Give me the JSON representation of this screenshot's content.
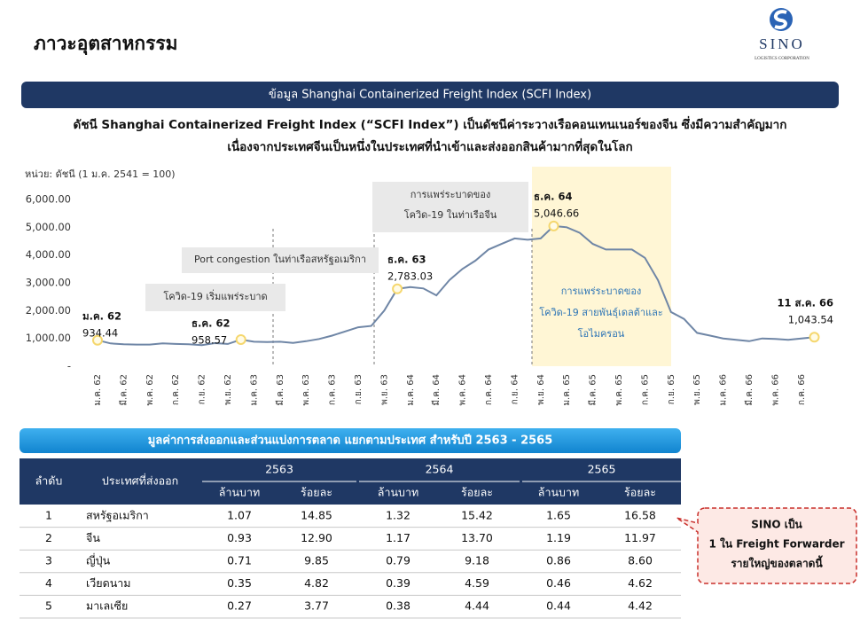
{
  "header": {
    "title": "ภาวะอุตสาหกรรม",
    "logo": "SINO",
    "logo_sub": "LOGISTICS CORPORATION"
  },
  "banner": "ข้อมูล Shanghai Containerized Freight Index (SCFI Index)",
  "description": [
    "ดัชนี Shanghai Containerized Freight Index (“SCFI Index”) เป็นดัชนีค่าระวางเรือคอนเทนเนอร์ของจีน ซึ่งมีความสำคัญมาก",
    "เนื่องจากประเทศจีนเป็นหนึ่งในประเทศที่นำเข้าและส่งออกสินค้ามากที่สุดในโลก"
  ],
  "chart_data": {
    "type": "line",
    "unit_label": "หน่วย: ดัชนี (1 ม.ค. 2541 = 100)",
    "color": "#6f86a6",
    "marker_color": "#f5d76e",
    "categories": [
      "ม.ค. 62",
      null,
      "มี.ค. 62",
      null,
      "พ.ค. 62",
      null,
      "ก.ค. 62",
      null,
      "ก.ย. 62",
      null,
      "พ.ย. 62",
      null,
      "ม.ค. 63",
      null,
      "มี.ค. 63",
      null,
      "พ.ค. 63",
      null,
      "ก.ค. 63",
      null,
      "ก.ย. 63",
      null,
      "พ.ย. 63",
      null,
      "ม.ค. 64",
      null,
      "มี.ค. 64",
      null,
      "พ.ค. 64",
      null,
      "ก.ค. 64",
      null,
      "ก.ย. 64",
      null,
      "พ.ย. 64",
      null,
      "ม.ค. 65",
      null,
      "มี.ค. 65",
      null,
      "พ.ค. 65",
      null,
      "ก.ค. 65",
      null,
      "ก.ย. 65",
      null,
      "พ.ย. 65",
      null,
      "ม.ค. 66",
      null,
      "มี.ค. 66",
      null,
      "พ.ค. 66",
      null,
      "ก.ค. 66",
      null
    ],
    "values": [
      934.44,
      820,
      790,
      780,
      780,
      820,
      800,
      790,
      760,
      830,
      800,
      958.57,
      880,
      870,
      880,
      840,
      900,
      980,
      1100,
      1250,
      1400,
      1450,
      2000,
      2783.03,
      2850,
      2800,
      2550,
      3100,
      3500,
      3800,
      4200,
      4400,
      4600,
      4550,
      4600,
      5046.66,
      5000,
      4800,
      4400,
      4200,
      4200,
      4200,
      3900,
      3100,
      1950,
      1700,
      1200,
      1100,
      1000,
      950,
      900,
      1000,
      980,
      950,
      1000,
      1043.54
    ],
    "value_labels": [
      "934.44",
      null,
      null,
      null,
      null,
      null,
      null,
      null,
      null,
      null,
      null,
      "958.57",
      null,
      null,
      null,
      null,
      null,
      null,
      null,
      null,
      null,
      null,
      null,
      "2,783.03",
      null,
      null,
      null,
      null,
      null,
      null,
      null,
      null,
      null,
      null,
      null,
      "5,046.66",
      null,
      null,
      null,
      null,
      null,
      null,
      null,
      null,
      null,
      null,
      null,
      null,
      null,
      null,
      null,
      null,
      null,
      null,
      null,
      "1,043.54"
    ],
    "point_dates": [
      "ม.ค. 62",
      null,
      null,
      null,
      null,
      null,
      null,
      null,
      null,
      null,
      null,
      "ธ.ค. 62",
      null,
      null,
      null,
      null,
      null,
      null,
      null,
      null,
      null,
      null,
      null,
      "ธ.ค. 63",
      null,
      null,
      null,
      null,
      null,
      null,
      null,
      null,
      null,
      null,
      null,
      "ธ.ค. 64",
      null,
      null,
      null,
      null,
      null,
      null,
      null,
      null,
      null,
      null,
      null,
      null,
      null,
      null,
      null,
      null,
      null,
      null,
      null,
      "11 ส.ค. 66"
    ],
    "ylim": [
      0,
      6000
    ],
    "yticks": [
      {
        "value": 0,
        "label": "-"
      },
      {
        "value": 1000,
        "label": "1,000.00"
      },
      {
        "value": 2000,
        "label": "2,000.00"
      },
      {
        "value": 3000,
        "label": "3,000.00"
      },
      {
        "value": 4000,
        "label": "4,000.00"
      },
      {
        "value": 5000,
        "label": "5,000.00"
      },
      {
        "value": 6000,
        "label": "6,000.00"
      }
    ],
    "annotations": [
      [
        "การแพร่ระบาดของ",
        "โควิด-19 ในท่าเรือจีน"
      ],
      [
        "Port congestion ในท่าเรือสหรัฐอเมริกา"
      ],
      [
        "โควิด-19 เริ่มแพร่ระบาด"
      ],
      [
        "การแพร่ระบาดของ",
        "โควิด-19 สายพันธุ์เดลต้าและ",
        "โอไมครอน"
      ]
    ]
  },
  "table": {
    "title": "มูลค่าการส่งออกและส่วนแบ่งการตลาด แยกตามประเทศ สำหรับปี 2563 - 2565",
    "headers": {
      "rank": "ลำดับ",
      "country": "ประเทศที่ส่งออก",
      "years": [
        "2563",
        "2564",
        "2565"
      ],
      "sub": [
        "ล้านบาท",
        "ร้อยละ"
      ]
    },
    "rows": [
      [
        "1",
        "สหรัฐอเมริกา",
        "1.07",
        "14.85",
        "1.32",
        "15.42",
        "1.65",
        "16.58"
      ],
      [
        "2",
        "จีน",
        "0.93",
        "12.90",
        "1.17",
        "13.70",
        "1.19",
        "11.97"
      ],
      [
        "3",
        "ญี่ปุ่น",
        "0.71",
        "9.85",
        "0.79",
        "9.18",
        "0.86",
        "8.60"
      ],
      [
        "4",
        "เวียดนาม",
        "0.35",
        "4.82",
        "0.39",
        "4.59",
        "0.46",
        "4.62"
      ],
      [
        "5",
        "มาเลเซีย",
        "0.27",
        "3.77",
        "0.38",
        "4.44",
        "0.44",
        "4.42"
      ]
    ]
  },
  "callout": [
    "SINO เป็น",
    "1 ใน Freight Forwarder",
    "รายใหญ่ของตลาดนี้"
  ]
}
